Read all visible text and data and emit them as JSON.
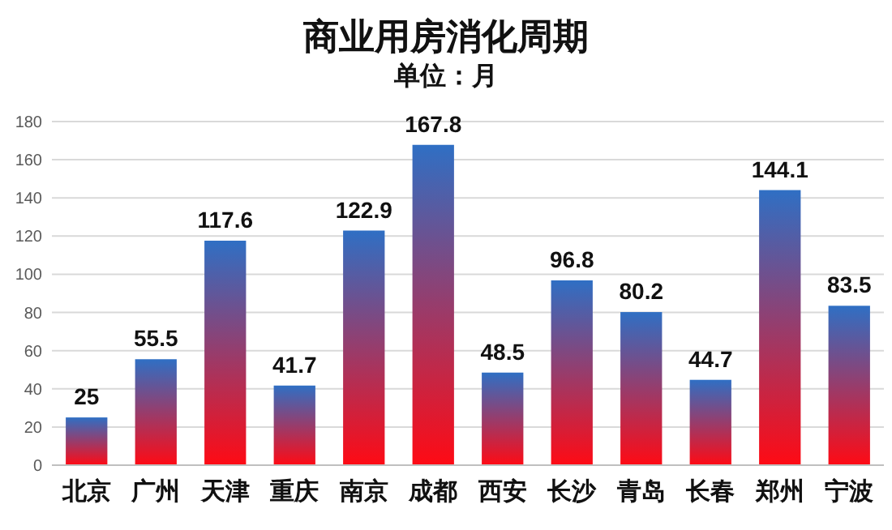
{
  "chart_data": {
    "type": "bar",
    "title": "商业用房消化周期",
    "subtitle": "单位：月",
    "categories": [
      "北京",
      "广州",
      "天津",
      "重庆",
      "南京",
      "成都",
      "西安",
      "长沙",
      "青岛",
      "长春",
      "郑州",
      "宁波"
    ],
    "series": [
      {
        "color": "#2f6fc4",
        "values": [
          25,
          55.5,
          117.6,
          41.7,
          122.9,
          167.8,
          48.5,
          96.8,
          80.2,
          44.7,
          144.1,
          83.5
        ]
      }
    ],
    "ylim": [
      0,
      180
    ],
    "yticks": [
      0,
      20,
      40,
      60,
      80,
      100,
      120,
      140,
      160,
      180
    ],
    "grid": "y",
    "data_labels": true
  }
}
